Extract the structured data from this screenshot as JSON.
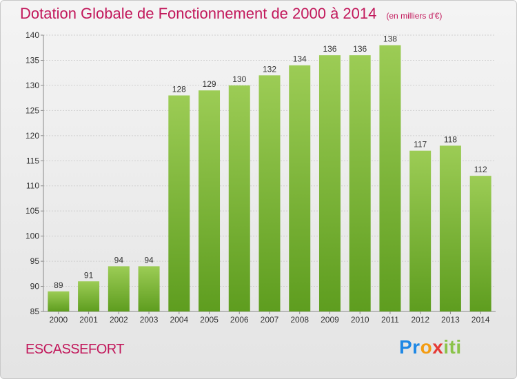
{
  "chart_data": {
    "type": "bar",
    "title": "Dotation Globale de Fonctionnement de 2000 à 2014",
    "subtitle": "(en milliers d'€)",
    "categories": [
      "2000",
      "2001",
      "2002",
      "2003",
      "2004",
      "2005",
      "2006",
      "2007",
      "2008",
      "2009",
      "2010",
      "2011",
      "2012",
      "2013",
      "2014"
    ],
    "values": [
      89,
      91,
      94,
      94,
      128,
      129,
      130,
      132,
      134,
      136,
      136,
      138,
      117,
      118,
      112
    ],
    "xlabel": "",
    "ylabel": "",
    "ylim": [
      85,
      140
    ],
    "yticks": [
      85,
      90,
      95,
      100,
      105,
      110,
      115,
      120,
      125,
      130,
      135,
      140
    ],
    "grid": true,
    "legend": "none",
    "bar_color": "#7cb82f"
  },
  "footer": {
    "commune": "ESCASSEFORT",
    "logo": {
      "p": "Pr",
      "o": "o",
      "x": "x",
      "iti": "iti"
    }
  }
}
